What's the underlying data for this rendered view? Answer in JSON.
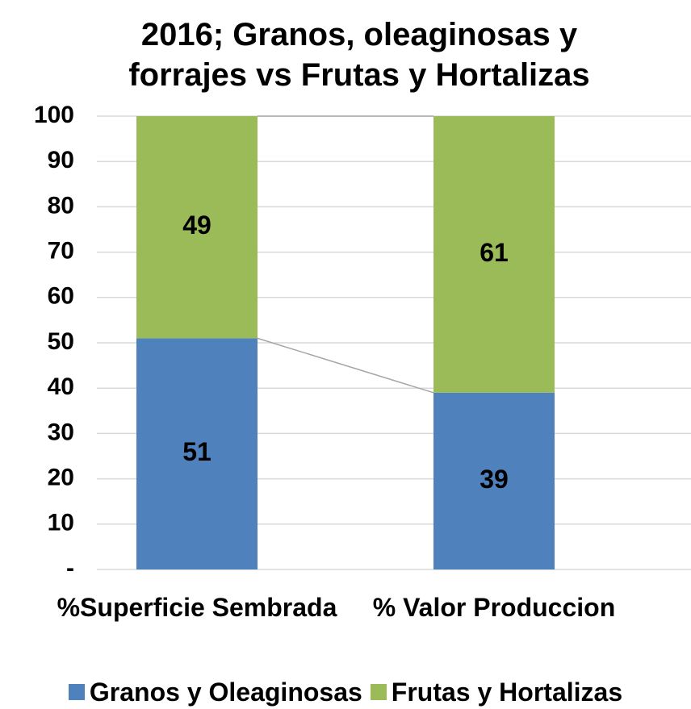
{
  "chart_data": {
    "type": "stacked_bar",
    "title": "2016; Granos, oleaginosas y forrajes vs Frutas y Hortalizas",
    "categories": [
      "%Superficie Sembrada",
      "% Valor Produccion"
    ],
    "series": [
      {
        "name": "Granos y Oleaginosas",
        "color": "#4f81bd",
        "values": [
          51,
          39
        ]
      },
      {
        "name": "Frutas y Hortalizas",
        "color": "#9bbb59",
        "values": [
          49,
          61
        ]
      }
    ],
    "ylim": [
      0,
      100
    ],
    "yticks": [
      {
        "value": 0,
        "label": "-"
      },
      10,
      20,
      30,
      40,
      50,
      60,
      70,
      80,
      90,
      100
    ],
    "grid": true,
    "legend": "bottom"
  }
}
